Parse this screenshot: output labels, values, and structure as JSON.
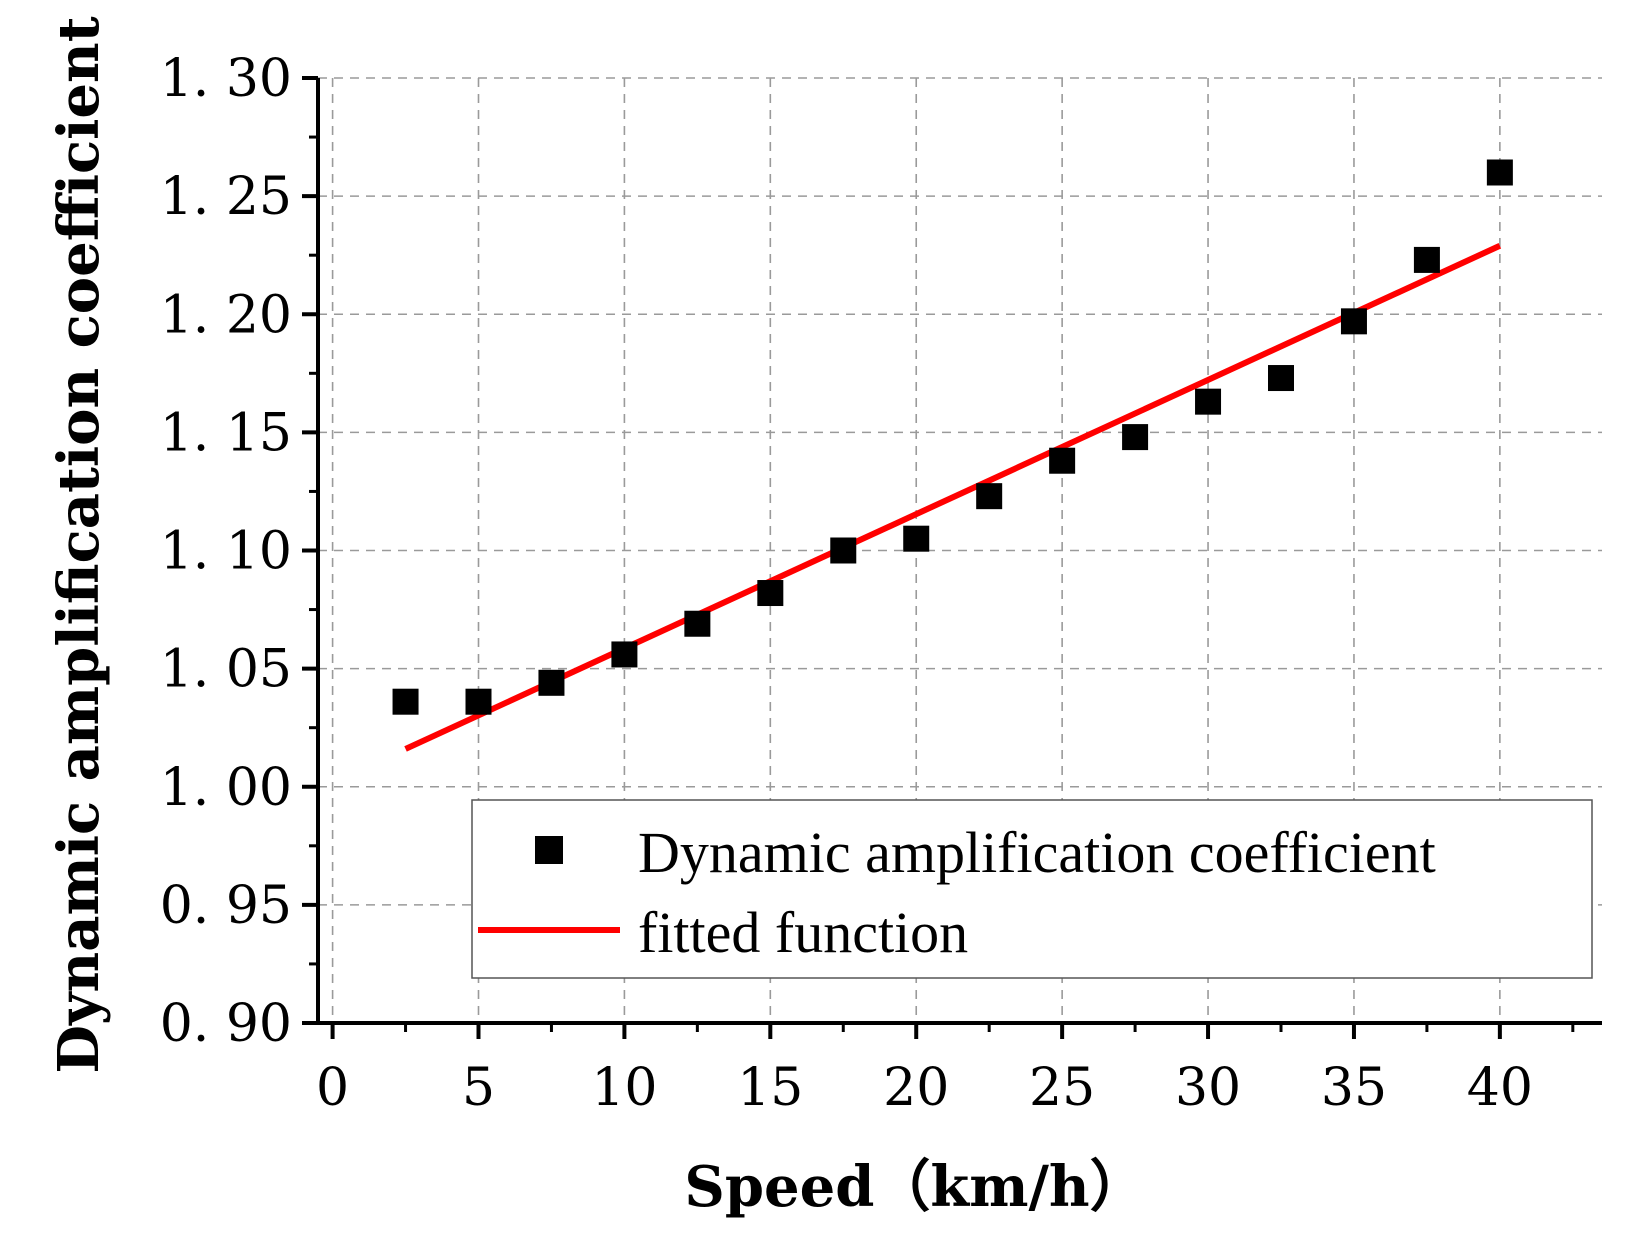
{
  "chart_data": {
    "type": "scatter",
    "title": "",
    "xlabel": "Speed（km/h）",
    "ylabel": "Dynamic amplification coefficient",
    "xlim": [
      -0.5,
      43.5
    ],
    "ylim": [
      0.9,
      1.3
    ],
    "x_ticks": [
      0,
      5,
      10,
      15,
      20,
      25,
      30,
      35,
      40
    ],
    "x_tick_labels": [
      "0",
      "5",
      "10",
      "15",
      "20",
      "25",
      "30",
      "35",
      "40"
    ],
    "y_ticks": [
      0.9,
      0.95,
      1.0,
      1.05,
      1.1,
      1.15,
      1.2,
      1.25,
      1.3
    ],
    "y_tick_labels": [
      "0. 90",
      "0. 95",
      "1. 00",
      "1. 05",
      "1. 10",
      "1. 15",
      "1. 20",
      "1. 25",
      "1. 30"
    ],
    "grid": true,
    "legend_position": "bottom-right",
    "series": [
      {
        "name": "Dynamic amplification coefficient",
        "kind": "scatter",
        "marker": "square",
        "color": "#000000",
        "x": [
          2.5,
          5,
          7.5,
          10,
          12.5,
          15,
          17.5,
          20,
          22.5,
          25,
          27.5,
          30,
          32.5,
          35,
          37.5,
          40
        ],
        "y": [
          1.036,
          1.036,
          1.044,
          1.056,
          1.069,
          1.082,
          1.1,
          1.105,
          1.123,
          1.138,
          1.148,
          1.163,
          1.173,
          1.197,
          1.223,
          1.26
        ]
      },
      {
        "name": "fitted function",
        "kind": "line",
        "color": "#ff0000",
        "x": [
          2.5,
          40
        ],
        "y": [
          1.016,
          1.229
        ]
      }
    ]
  }
}
